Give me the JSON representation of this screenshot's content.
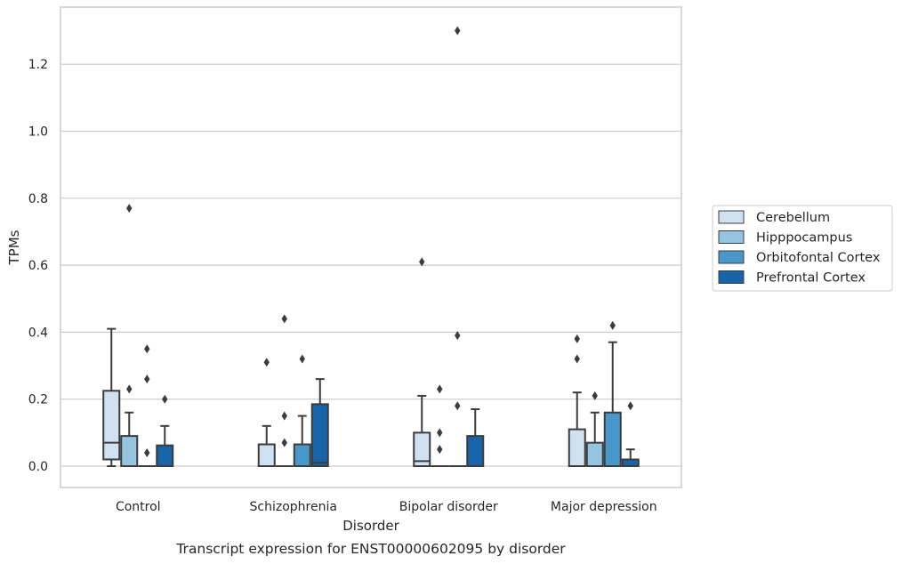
{
  "chart_data": {
    "type": "box",
    "title": "",
    "caption": "Transcript expression for ENST00000602095 by disorder",
    "xlabel": "Disorder",
    "ylabel": "TPMs",
    "ylim": [
      -0.065,
      1.365
    ],
    "yticks": [
      0.0,
      0.2,
      0.4,
      0.6,
      0.8,
      1.0,
      1.2
    ],
    "ytick_labels": [
      "0.0",
      "0.2",
      "0.4",
      "0.6",
      "0.8",
      "1.0",
      "1.2"
    ],
    "grid": "horizontal",
    "legend_position": "center-right-outside",
    "categories": [
      "Control",
      "Schizophrenia",
      "Bipolar disorder",
      "Major depression"
    ],
    "series": [
      {
        "name": "Cerebellum",
        "color": "#d0e1f2",
        "boxes": [
          {
            "q1": 0.02,
            "median": 0.07,
            "q3": 0.225,
            "whisker_low": 0.0,
            "whisker_high": 0.41,
            "outliers": []
          },
          {
            "q1": 0.0,
            "median": 0.0,
            "q3": 0.065,
            "whisker_low": 0.0,
            "whisker_high": 0.12,
            "outliers": [
              0.31
            ]
          },
          {
            "q1": 0.0,
            "median": 0.015,
            "q3": 0.1,
            "whisker_low": 0.0,
            "whisker_high": 0.21,
            "outliers": [
              0.61
            ]
          },
          {
            "q1": 0.0,
            "median": 0.0,
            "q3": 0.11,
            "whisker_low": 0.0,
            "whisker_high": 0.22,
            "outliers": [
              0.32,
              0.38
            ]
          }
        ]
      },
      {
        "name": "Hipppocampus",
        "color": "#94c4df",
        "boxes": [
          {
            "q1": 0.0,
            "median": 0.0,
            "q3": 0.09,
            "whisker_low": 0.0,
            "whisker_high": 0.16,
            "outliers": [
              0.23,
              0.77
            ]
          },
          {
            "q1": 0.0,
            "median": 0.0,
            "q3": 0.0,
            "whisker_low": 0.0,
            "whisker_high": 0.0,
            "outliers": [
              0.07,
              0.15,
              0.44
            ]
          },
          {
            "q1": 0.0,
            "median": 0.0,
            "q3": 0.0,
            "whisker_low": 0.0,
            "whisker_high": 0.0,
            "outliers": [
              0.05,
              0.1,
              0.23
            ]
          },
          {
            "q1": 0.0,
            "median": 0.0,
            "q3": 0.07,
            "whisker_low": 0.0,
            "whisker_high": 0.16,
            "outliers": [
              0.21
            ]
          }
        ]
      },
      {
        "name": "Orbitofontal Cortex",
        "color": "#4a98c9",
        "boxes": [
          {
            "q1": 0.0,
            "median": 0.0,
            "q3": 0.0,
            "whisker_low": 0.0,
            "whisker_high": 0.0,
            "outliers": [
              0.04,
              0.26,
              0.35
            ]
          },
          {
            "q1": 0.0,
            "median": 0.0,
            "q3": 0.065,
            "whisker_low": 0.0,
            "whisker_high": 0.15,
            "outliers": [
              0.32
            ]
          },
          {
            "q1": 0.0,
            "median": 0.0,
            "q3": 0.0,
            "whisker_low": 0.0,
            "whisker_high": 0.0,
            "outliers": [
              0.18,
              0.39,
              1.3
            ]
          },
          {
            "q1": 0.0,
            "median": 0.0,
            "q3": 0.16,
            "whisker_low": 0.0,
            "whisker_high": 0.37,
            "outliers": [
              0.42
            ]
          }
        ]
      },
      {
        "name": "Prefrontal Cortex",
        "color": "#1764ab",
        "boxes": [
          {
            "q1": 0.0,
            "median": 0.0,
            "q3": 0.062,
            "whisker_low": 0.0,
            "whisker_high": 0.12,
            "outliers": [
              0.2
            ]
          },
          {
            "q1": 0.0,
            "median": 0.01,
            "q3": 0.185,
            "whisker_low": 0.0,
            "whisker_high": 0.26,
            "outliers": []
          },
          {
            "q1": 0.0,
            "median": 0.0,
            "q3": 0.09,
            "whisker_low": 0.0,
            "whisker_high": 0.17,
            "outliers": []
          },
          {
            "q1": 0.0,
            "median": 0.0,
            "q3": 0.02,
            "whisker_low": 0.0,
            "whisker_high": 0.05,
            "outliers": [
              0.18
            ]
          }
        ]
      }
    ]
  }
}
